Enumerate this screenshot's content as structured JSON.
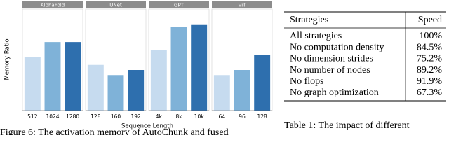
{
  "chart_data": [
    {
      "type": "bar",
      "title": "AlphaFold",
      "categories": [
        "512",
        "1024",
        "1280"
      ],
      "values": [
        0.21,
        0.27,
        0.27
      ],
      "colors": [
        "#c6dbef",
        "#7fb2d8",
        "#2e6fae"
      ],
      "ylim": [
        0,
        0.4
      ]
    },
    {
      "type": "bar",
      "title": "UNet",
      "categories": [
        "128",
        "160",
        "192"
      ],
      "values": [
        0.18,
        0.14,
        0.16
      ],
      "colors": [
        "#c6dbef",
        "#7fb2d8",
        "#2e6fae"
      ],
      "ylim": [
        0,
        0.4
      ]
    },
    {
      "type": "bar",
      "title": "GPT",
      "categories": [
        "4k",
        "8k",
        "10k"
      ],
      "values": [
        0.24,
        0.33,
        0.34
      ],
      "colors": [
        "#c6dbef",
        "#7fb2d8",
        "#2e6fae"
      ],
      "ylim": [
        0,
        0.4
      ]
    },
    {
      "type": "bar",
      "title": "ViT",
      "categories": [
        "64",
        "96",
        "128"
      ],
      "values": [
        0.14,
        0.16,
        0.22
      ],
      "colors": [
        "#c6dbef",
        "#7fb2d8",
        "#2e6fae"
      ],
      "ylim": [
        0,
        0.4
      ]
    }
  ],
  "figure": {
    "ylabel": "Memory Ratio",
    "xlabel": "Sequence Length",
    "caption": "Figure 6: The activation memory of AutoChunk and fused"
  },
  "table": {
    "header": [
      "Strategies",
      "Speed"
    ],
    "rows": [
      [
        "All strategies",
        "100%"
      ],
      [
        "No computation density",
        "84.5%"
      ],
      [
        "No dimension strides",
        "75.2%"
      ],
      [
        "No number of nodes",
        "89.2%"
      ],
      [
        "No flops",
        "91.9%"
      ],
      [
        "No graph optimization",
        "67.3%"
      ]
    ],
    "caption": "Table 1: The impact of different"
  }
}
